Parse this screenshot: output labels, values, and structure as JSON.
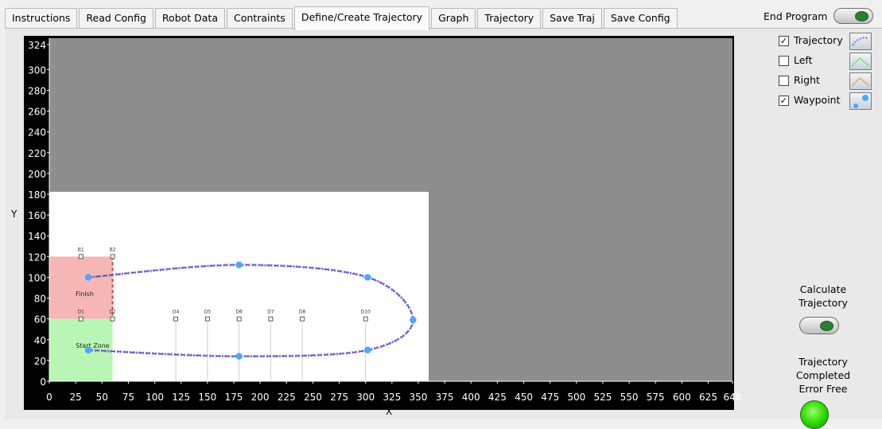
{
  "tabs": [
    {
      "label": "Instructions",
      "active": false
    },
    {
      "label": "Read Config",
      "active": false
    },
    {
      "label": "Robot Data",
      "active": false
    },
    {
      "label": "Contraints",
      "active": false
    },
    {
      "label": "Define/Create Trajectory",
      "active": true
    },
    {
      "label": "Graph",
      "active": false
    },
    {
      "label": "Trajectory",
      "active": false
    },
    {
      "label": "Save Traj",
      "active": false
    },
    {
      "label": "Save Config",
      "active": false
    }
  ],
  "end_program": {
    "label": "End Program"
  },
  "plot": {
    "x_label": "X",
    "y_label": "Y",
    "x_ticks": [
      0,
      25,
      50,
      75,
      100,
      125,
      150,
      175,
      200,
      225,
      250,
      275,
      300,
      325,
      350,
      375,
      400,
      425,
      450,
      475,
      500,
      525,
      550,
      575,
      600,
      625,
      648
    ],
    "y_ticks": [
      0,
      20,
      40,
      60,
      80,
      100,
      120,
      140,
      160,
      180,
      200,
      220,
      240,
      260,
      280,
      300,
      324
    ],
    "x_range": [
      0,
      648
    ],
    "y_range": [
      0,
      324
    ],
    "field": {
      "x_extent": 360,
      "y_extent": 180,
      "zones": [
        {
          "label": "Finish",
          "color": "#f6b6b6",
          "x": [
            0,
            60
          ],
          "y": [
            60,
            120
          ]
        },
        {
          "label": "Start Zone",
          "color": "#b9f5b4",
          "x": [
            0,
            60
          ],
          "y": [
            0,
            60
          ]
        }
      ],
      "markers": [
        {
          "label": "B1",
          "x": 30,
          "y": 120
        },
        {
          "label": "B2",
          "x": 60,
          "y": 120
        },
        {
          "label": "D1",
          "x": 30,
          "y": 60
        },
        {
          "label": "D2",
          "x": 60,
          "y": 60
        },
        {
          "label": "D4",
          "x": 120,
          "y": 60
        },
        {
          "label": "D5",
          "x": 150,
          "y": 60
        },
        {
          "label": "D6",
          "x": 180,
          "y": 60
        },
        {
          "label": "D7",
          "x": 210,
          "y": 60
        },
        {
          "label": "D8",
          "x": 240,
          "y": 60
        },
        {
          "label": "D10",
          "x": 300,
          "y": 60
        }
      ]
    },
    "waypoints": [
      {
        "x": 37,
        "y": 30
      },
      {
        "x": 180,
        "y": 24
      },
      {
        "x": 302,
        "y": 30
      },
      {
        "x": 345,
        "y": 59
      },
      {
        "x": 302,
        "y": 100
      },
      {
        "x": 180,
        "y": 112
      },
      {
        "x": 37,
        "y": 100
      }
    ]
  },
  "legend": {
    "items": [
      {
        "label": "Trajectory",
        "checked": true,
        "icon": "trajectory-swatch"
      },
      {
        "label": "Left",
        "checked": false,
        "icon": "left-swatch"
      },
      {
        "label": "Right",
        "checked": false,
        "icon": "right-swatch"
      },
      {
        "label": "Waypoint",
        "checked": true,
        "icon": "waypoint-swatch"
      }
    ],
    "check_glyph": "✓"
  },
  "calculate": {
    "label": "Calculate Trajectory"
  },
  "status": {
    "label": "Trajectory Completed Error Free",
    "led_color": "#27d600"
  },
  "colors": {
    "trajectory": "#7b68ee",
    "waypoint": "#4aa8ff",
    "axis_text": "#ffffff",
    "plot_bg": "#8e8e8e"
  }
}
